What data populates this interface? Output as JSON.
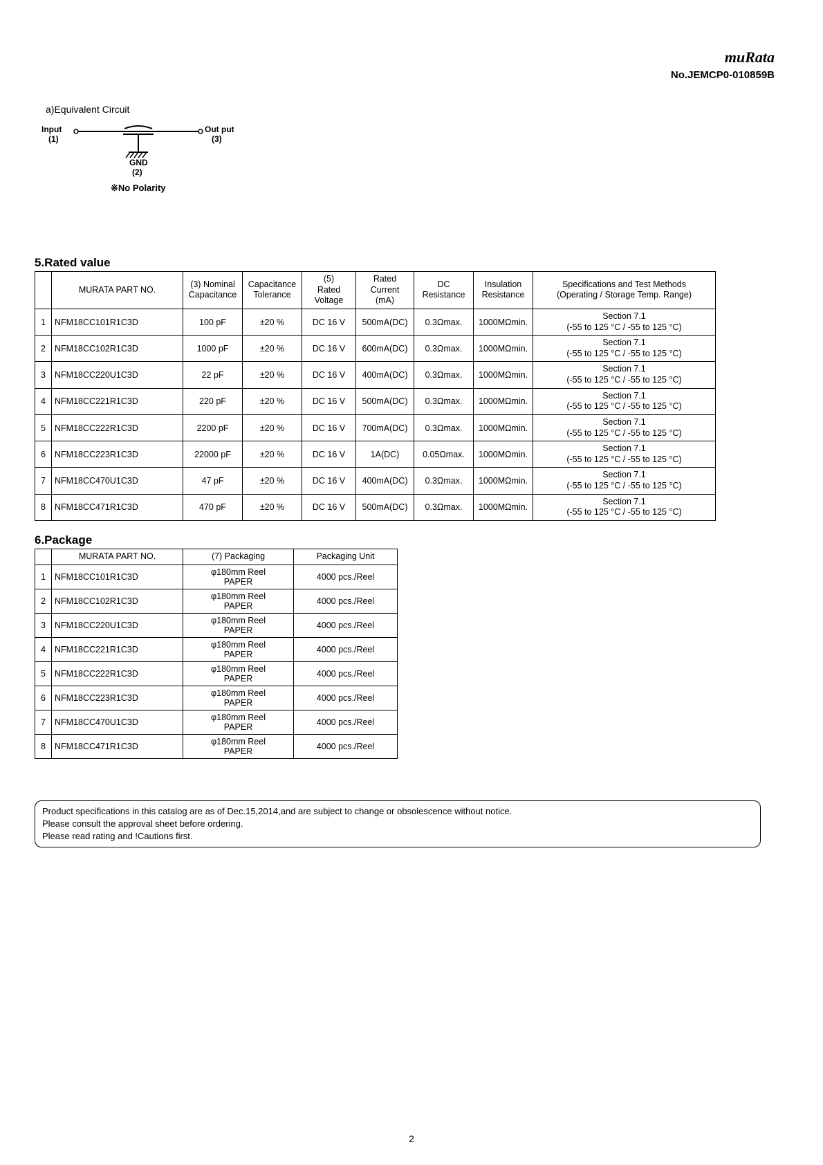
{
  "header": {
    "brand": "muRata",
    "doc_no": "No.JEMCP0-010859B"
  },
  "equiv_circuit": {
    "label": "a)Equivalent Circuit",
    "input_label": "Input",
    "input_num": "(1)",
    "output_label": "Out put",
    "output_num": "(3)",
    "gnd_label": "GND",
    "gnd_num": "(2)",
    "nopolarity": "※No Polarity"
  },
  "rated": {
    "title": "5.Rated value",
    "headers": {
      "part_no": "MURATA PART NO.",
      "capacitance": "(3) Nominal Capacitance",
      "tolerance": "Capacitance Tolerance",
      "voltage_line1": "(5)",
      "voltage_line2": "Rated",
      "voltage_line3": "Voltage",
      "current_line1": "Rated",
      "current_line2": "Current",
      "current_line3": "(mA)",
      "dcr": "DC Resistance",
      "ins": "Insulation Resistance",
      "spec_line1": "Specifications and Test Methods",
      "spec_line2": "(Operating / Storage Temp. Range)"
    },
    "rows": [
      {
        "idx": "1",
        "part": "NFM18CC101R1C3D",
        "cap": "100 pF",
        "tol": "±20 %",
        "volt": "DC 16 V",
        "curr": "500mA(DC)",
        "dcr": "0.3Ωmax.",
        "ins": "1000MΩmin.",
        "spec1": "Section 7.1",
        "spec2": "(-55 to 125 °C / -55 to 125 °C)"
      },
      {
        "idx": "2",
        "part": "NFM18CC102R1C3D",
        "cap": "1000 pF",
        "tol": "±20 %",
        "volt": "DC 16 V",
        "curr": "600mA(DC)",
        "dcr": "0.3Ωmax.",
        "ins": "1000MΩmin.",
        "spec1": "Section 7.1",
        "spec2": "(-55 to 125 °C / -55 to 125 °C)"
      },
      {
        "idx": "3",
        "part": "NFM18CC220U1C3D",
        "cap": "22 pF",
        "tol": "±20 %",
        "volt": "DC 16 V",
        "curr": "400mA(DC)",
        "dcr": "0.3Ωmax.",
        "ins": "1000MΩmin.",
        "spec1": "Section 7.1",
        "spec2": "(-55 to 125 °C / -55 to 125 °C)"
      },
      {
        "idx": "4",
        "part": "NFM18CC221R1C3D",
        "cap": "220 pF",
        "tol": "±20 %",
        "volt": "DC 16 V",
        "curr": "500mA(DC)",
        "dcr": "0.3Ωmax.",
        "ins": "1000MΩmin.",
        "spec1": "Section 7.1",
        "spec2": "(-55 to 125 °C / -55 to 125 °C)"
      },
      {
        "idx": "5",
        "part": "NFM18CC222R1C3D",
        "cap": "2200 pF",
        "tol": "±20 %",
        "volt": "DC 16 V",
        "curr": "700mA(DC)",
        "dcr": "0.3Ωmax.",
        "ins": "1000MΩmin.",
        "spec1": "Section 7.1",
        "spec2": "(-55 to 125 °C / -55 to 125 °C)"
      },
      {
        "idx": "6",
        "part": "NFM18CC223R1C3D",
        "cap": "22000 pF",
        "tol": "±20 %",
        "volt": "DC 16 V",
        "curr": "1A(DC)",
        "dcr": "0.05Ωmax.",
        "ins": "1000MΩmin.",
        "spec1": "Section 7.1",
        "spec2": "(-55 to 125 °C / -55 to 125 °C)"
      },
      {
        "idx": "7",
        "part": "NFM18CC470U1C3D",
        "cap": "47 pF",
        "tol": "±20 %",
        "volt": "DC 16 V",
        "curr": "400mA(DC)",
        "dcr": "0.3Ωmax.",
        "ins": "1000MΩmin.",
        "spec1": "Section 7.1",
        "spec2": "(-55 to 125 °C / -55 to 125 °C)"
      },
      {
        "idx": "8",
        "part": "NFM18CC471R1C3D",
        "cap": "470 pF",
        "tol": "±20 %",
        "volt": "DC 16 V",
        "curr": "500mA(DC)",
        "dcr": "0.3Ωmax.",
        "ins": "1000MΩmin.",
        "spec1": "Section 7.1",
        "spec2": "(-55 to 125 °C / -55 to 125 °C)"
      }
    ]
  },
  "package": {
    "title": "6.Package",
    "headers": {
      "part_no": "MURATA PART NO.",
      "packaging": "(7) Packaging",
      "unit": "Packaging Unit"
    },
    "rows": [
      {
        "idx": "1",
        "part": "NFM18CC101R1C3D",
        "pack1": "φ180mm Reel",
        "pack2": "PAPER",
        "unit": "4000 pcs./Reel"
      },
      {
        "idx": "2",
        "part": "NFM18CC102R1C3D",
        "pack1": "φ180mm Reel",
        "pack2": "PAPER",
        "unit": "4000 pcs./Reel"
      },
      {
        "idx": "3",
        "part": "NFM18CC220U1C3D",
        "pack1": "φ180mm Reel",
        "pack2": "PAPER",
        "unit": "4000 pcs./Reel"
      },
      {
        "idx": "4",
        "part": "NFM18CC221R1C3D",
        "pack1": "φ180mm Reel",
        "pack2": "PAPER",
        "unit": "4000 pcs./Reel"
      },
      {
        "idx": "5",
        "part": "NFM18CC222R1C3D",
        "pack1": "φ180mm Reel",
        "pack2": "PAPER",
        "unit": "4000 pcs./Reel"
      },
      {
        "idx": "6",
        "part": "NFM18CC223R1C3D",
        "pack1": "φ180mm Reel",
        "pack2": "PAPER",
        "unit": "4000 pcs./Reel"
      },
      {
        "idx": "7",
        "part": "NFM18CC470U1C3D",
        "pack1": "φ180mm Reel",
        "pack2": "PAPER",
        "unit": "4000 pcs./Reel"
      },
      {
        "idx": "8",
        "part": "NFM18CC471R1C3D",
        "pack1": "φ180mm Reel",
        "pack2": "PAPER",
        "unit": "4000 pcs./Reel"
      }
    ]
  },
  "footnote": {
    "line1": "Product specifications in this catalog are as of Dec.15,2014,and are subject to change or obsolescence without notice.",
    "line2": "Please consult the approval sheet before ordering.",
    "line3": "Please read rating and !Cautions first."
  },
  "page_number": "2"
}
